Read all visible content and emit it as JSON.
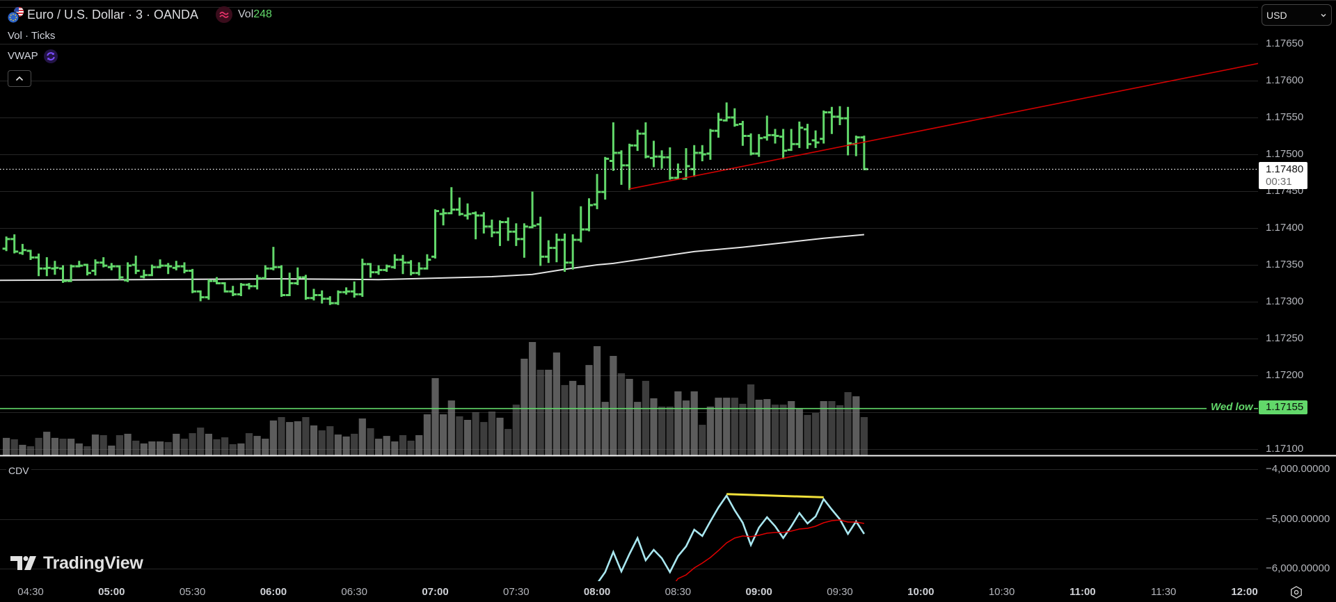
{
  "header": {
    "symbol_title": "Euro / U.S. Dollar · 3 · OANDA",
    "symbol_icon": "eur-usd-flags-icon",
    "indicator_icon": "wave-approx-icon",
    "vol_label": "Vol",
    "vol_value": "248"
  },
  "legend": {
    "volume_label": "Vol · Ticks",
    "vwap_label": "VWAP",
    "vwap_icon": "refresh-icon",
    "collapse_icon": "chevron-up-icon"
  },
  "price_axis": {
    "currency": "USD",
    "currency_icon": "chevron-down-icon",
    "ticks": [
      "1.17650",
      "1.17600",
      "1.17550",
      "1.17500",
      "1.17450",
      "1.17400",
      "1.17350",
      "1.17300",
      "1.17250",
      "1.17200",
      "1.17100"
    ],
    "current_price": "1.17480",
    "countdown": "00:31",
    "wed_low_label": "Wed low",
    "wed_low_value": "1.17155"
  },
  "cdv_pane": {
    "label": "CDV",
    "ticks": [
      "−4,000.00000",
      "−5,000.00000",
      "−6,000.00000"
    ]
  },
  "time_axis": {
    "labels": [
      "04:30",
      "05:00",
      "05:30",
      "06:00",
      "06:30",
      "07:00",
      "07:30",
      "08:00",
      "08:30",
      "09:00",
      "09:30",
      "10:00",
      "10:30",
      "11:00",
      "11:30",
      "12:00"
    ],
    "settings_icon": "gear-icon"
  },
  "watermark": "TradingView",
  "colors": {
    "bar": "#62d86a",
    "volume_up": "rgba(128,128,128,0.72)",
    "volume_down": "rgba(128,128,128,0.48)",
    "vwap": "#e4e4e4",
    "trendline": "#d40000",
    "last_price_line": "#ffffff",
    "wed_low": "#62d86a",
    "cdv_line": "#a9e7f0",
    "cdv_ma": "#e00000",
    "divergence_line": "#f2e13a",
    "grid": "#262626",
    "separator": "#f0f0f0",
    "indicator_red": "#e8336b",
    "vwap_icon": "#7c4dff"
  },
  "chart_data": [
    {
      "type": "bar",
      "style": "ohlc",
      "title": "Euro / U.S. Dollar · 3 · OANDA",
      "interval_minutes": 3,
      "x_start": "04:21",
      "x_step_minutes": 3,
      "ohlc_order": [
        "open",
        "high",
        "low",
        "close"
      ],
      "ohlc": [
        [
          1.17372,
          1.17387,
          1.1737,
          1.17385
        ],
        [
          1.17385,
          1.1739,
          1.17367,
          1.17368
        ],
        [
          1.17366,
          1.17377,
          1.17365,
          1.1737
        ],
        [
          1.17369,
          1.17369,
          1.17358,
          1.1736
        ],
        [
          1.1736,
          1.17364,
          1.17336,
          1.17345
        ],
        [
          1.17345,
          1.17359,
          1.17336,
          1.17346
        ],
        [
          1.17345,
          1.17354,
          1.17338,
          1.17346
        ],
        [
          1.17345,
          1.17348,
          1.17327,
          1.17328
        ],
        [
          1.17328,
          1.17349,
          1.17328,
          1.17348
        ],
        [
          1.17348,
          1.17354,
          1.17348,
          1.17349
        ],
        [
          1.1735,
          1.1735,
          1.17337,
          1.17339
        ],
        [
          1.17342,
          1.17356,
          1.17337,
          1.17353
        ],
        [
          1.17353,
          1.17359,
          1.17348,
          1.17349
        ],
        [
          1.17347,
          1.17351,
          1.17344,
          1.17348
        ],
        [
          1.17348,
          1.17348,
          1.17331,
          1.17333
        ],
        [
          1.17329,
          1.17352,
          1.17328,
          1.17349
        ],
        [
          1.1735,
          1.17361,
          1.17339,
          1.17342
        ],
        [
          1.17334,
          1.17342,
          1.17333,
          1.17336
        ],
        [
          1.17336,
          1.17349,
          1.17336,
          1.17347
        ],
        [
          1.17347,
          1.17356,
          1.17347,
          1.17349
        ],
        [
          1.17349,
          1.17351,
          1.17339,
          1.17348
        ],
        [
          1.17346,
          1.17354,
          1.17344,
          1.17348
        ],
        [
          1.17348,
          1.17352,
          1.1734,
          1.17342
        ],
        [
          1.17342,
          1.17343,
          1.17313,
          1.17314
        ],
        [
          1.17314,
          1.17314,
          1.17302,
          1.17306
        ],
        [
          1.17306,
          1.17329,
          1.17304,
          1.17328
        ],
        [
          1.17328,
          1.17332,
          1.17325,
          1.17325
        ],
        [
          1.17325,
          1.17325,
          1.17314,
          1.17314
        ],
        [
          1.17314,
          1.1732,
          1.17309,
          1.1731
        ],
        [
          1.1731,
          1.17324,
          1.17309,
          1.17323
        ],
        [
          1.17323,
          1.17324,
          1.17318,
          1.17321
        ],
        [
          1.17321,
          1.17335,
          1.17318,
          1.17332
        ],
        [
          1.17332,
          1.17348,
          1.17332,
          1.17345
        ],
        [
          1.17345,
          1.17373,
          1.17344,
          1.17347
        ],
        [
          1.17347,
          1.17348,
          1.17308,
          1.17309
        ],
        [
          1.17309,
          1.17338,
          1.17309,
          1.17325
        ],
        [
          1.17325,
          1.17345,
          1.17324,
          1.17333
        ],
        [
          1.17333,
          1.17335,
          1.17304,
          1.17305
        ],
        [
          1.17305,
          1.17316,
          1.17303,
          1.17309
        ],
        [
          1.17309,
          1.17314,
          1.17299,
          1.17304
        ],
        [
          1.17304,
          1.17306,
          1.17297,
          1.17298
        ],
        [
          1.17298,
          1.17314,
          1.17297,
          1.17313
        ],
        [
          1.17313,
          1.17318,
          1.17311,
          1.17314
        ],
        [
          1.17314,
          1.17326,
          1.17307,
          1.1731
        ],
        [
          1.1731,
          1.17357,
          1.17308,
          1.17351
        ],
        [
          1.17351,
          1.17351,
          1.17334,
          1.1734
        ],
        [
          1.1734,
          1.17348,
          1.17338,
          1.17343
        ],
        [
          1.17343,
          1.17349,
          1.17342,
          1.17348
        ],
        [
          1.17347,
          1.17363,
          1.17346,
          1.17357
        ],
        [
          1.17357,
          1.17362,
          1.17339,
          1.17353
        ],
        [
          1.17353,
          1.17355,
          1.17337,
          1.17339
        ],
        [
          1.17339,
          1.17352,
          1.17337,
          1.17345
        ],
        [
          1.17345,
          1.17363,
          1.17345,
          1.17357
        ],
        [
          1.17361,
          1.17424,
          1.1736,
          1.17423
        ],
        [
          1.17419,
          1.17425,
          1.17405,
          1.1742
        ],
        [
          1.1742,
          1.17454,
          1.1742,
          1.17425
        ],
        [
          1.17425,
          1.1744,
          1.17418,
          1.17419
        ],
        [
          1.17417,
          1.17432,
          1.17413,
          1.17419
        ],
        [
          1.1742,
          1.17421,
          1.17386,
          1.17417
        ],
        [
          1.17417,
          1.1742,
          1.17394,
          1.17402
        ],
        [
          1.17402,
          1.1741,
          1.17389,
          1.17394
        ],
        [
          1.17394,
          1.17409,
          1.17377,
          1.17408
        ],
        [
          1.17408,
          1.17413,
          1.17384,
          1.17395
        ],
        [
          1.17395,
          1.17405,
          1.17377,
          1.17385
        ],
        [
          1.17385,
          1.17405,
          1.17361,
          1.17402
        ],
        [
          1.17401,
          1.17448,
          1.17401,
          1.17403
        ],
        [
          1.17405,
          1.17414,
          1.1735,
          1.17361
        ],
        [
          1.17361,
          1.17382,
          1.17354,
          1.17373
        ],
        [
          1.17373,
          1.17391,
          1.17355,
          1.17384
        ],
        [
          1.17384,
          1.17391,
          1.17342,
          1.17353
        ],
        [
          1.17353,
          1.1739,
          1.17345,
          1.17384
        ],
        [
          1.17384,
          1.17428,
          1.17382,
          1.17398
        ],
        [
          1.17398,
          1.17439,
          1.17397,
          1.17431
        ],
        [
          1.17432,
          1.17472,
          1.17427,
          1.17449
        ],
        [
          1.17449,
          1.17495,
          1.1744,
          1.17494
        ],
        [
          1.17491,
          1.17542,
          1.17479,
          1.17502
        ],
        [
          1.17502,
          1.17504,
          1.1746,
          1.17485
        ],
        [
          1.17485,
          1.17513,
          1.17453,
          1.17512
        ],
        [
          1.17512,
          1.17532,
          1.17506,
          1.17528
        ],
        [
          1.17528,
          1.17542,
          1.17496,
          1.17497
        ],
        [
          1.17495,
          1.17517,
          1.17484,
          1.17497
        ],
        [
          1.17497,
          1.17504,
          1.17482,
          1.17496
        ],
        [
          1.17496,
          1.17508,
          1.17467,
          1.17468
        ],
        [
          1.17468,
          1.17486,
          1.17468,
          1.17476
        ],
        [
          1.17467,
          1.17507,
          1.17467,
          1.17484
        ],
        [
          1.1748,
          1.17511,
          1.17471,
          1.17502
        ],
        [
          1.17502,
          1.17511,
          1.17492,
          1.175
        ],
        [
          1.17501,
          1.17533,
          1.17494,
          1.17532
        ],
        [
          1.17532,
          1.17555,
          1.17524,
          1.17547
        ],
        [
          1.17546,
          1.17569,
          1.17546,
          1.1755
        ],
        [
          1.1755,
          1.17561,
          1.17539,
          1.1754
        ],
        [
          1.17541,
          1.17544,
          1.17513,
          1.17525
        ],
        [
          1.17525,
          1.17527,
          1.175,
          1.17501
        ],
        [
          1.17501,
          1.17526,
          1.17498,
          1.17522
        ],
        [
          1.17523,
          1.17551,
          1.1752,
          1.17526
        ],
        [
          1.17526,
          1.17533,
          1.17516,
          1.17525
        ],
        [
          1.17524,
          1.17533,
          1.17495,
          1.17505
        ],
        [
          1.17506,
          1.17533,
          1.17506,
          1.17514
        ],
        [
          1.17514,
          1.17543,
          1.1751,
          1.17536
        ],
        [
          1.17534,
          1.1754,
          1.17509,
          1.17514
        ],
        [
          1.17519,
          1.17531,
          1.1751,
          1.17516
        ],
        [
          1.17521,
          1.17558,
          1.17516,
          1.17557
        ],
        [
          1.17557,
          1.17563,
          1.17529,
          1.17551
        ],
        [
          1.17551,
          1.17564,
          1.17541,
          1.17549
        ],
        [
          1.17549,
          1.17563,
          1.175,
          1.17515
        ],
        [
          1.17514,
          1.17524,
          1.17499,
          1.17523
        ],
        [
          1.17523,
          1.17524,
          1.1748,
          1.1748
        ]
      ],
      "ylabel": "USD",
      "ylim": [
        1.17092,
        1.17709
      ],
      "yticks": [
        "1.17650",
        "1.17600",
        "1.17550",
        "1.17500",
        "1.17450",
        "1.17400",
        "1.17350",
        "1.17300",
        "1.17250",
        "1.17200",
        "1.17150",
        "1.17100"
      ],
      "grid_levels": [
        1.177,
        1.1765,
        1.176,
        1.1755,
        1.175,
        1.1745,
        1.174,
        1.1735,
        1.173,
        1.1725,
        1.172,
        1.1715,
        1.171
      ],
      "grid": true,
      "overlays": {
        "vwap": {
          "name": "VWAP",
          "points": [
            [
              -1,
              1.17329
            ],
            [
              16,
              1.1733
            ],
            [
              34,
              1.17331
            ],
            [
              46,
              1.1733
            ],
            [
              53,
              1.17332
            ],
            [
              60,
              1.17334
            ],
            [
              65,
              1.17337
            ],
            [
              69,
              1.17344
            ],
            [
              73,
              1.1735
            ],
            [
              75,
              1.17352
            ],
            [
              80,
              1.1736
            ],
            [
              85,
              1.17368
            ],
            [
              91,
              1.17374
            ],
            [
              96,
              1.1738
            ],
            [
              101,
              1.17386
            ],
            [
              106,
              1.17391
            ]
          ]
        },
        "trendline": {
          "start": [
            77,
            1.17453
          ],
          "end": [
            155,
            1.17624
          ],
          "extend_right": true
        },
        "hlines": [
          {
            "label": "Wed low",
            "price": 1.17155
          }
        ],
        "last_price": 1.1748,
        "countdown": "00:31"
      },
      "xticks": [
        "04:30",
        "05:00",
        "05:30",
        "06:00",
        "06:30",
        "07:00",
        "07:30",
        "08:00",
        "08:30",
        "09:00",
        "09:30",
        "10:00",
        "10:30",
        "11:00",
        "11:30",
        "12:00"
      ]
    },
    {
      "type": "bar",
      "title": "Vol · Ticks",
      "x_start": "04:21",
      "x_step_minutes": 3,
      "values": [
        113,
        104,
        68,
        59,
        113,
        153,
        113,
        108,
        108,
        77,
        59,
        135,
        131,
        63,
        131,
        140,
        95,
        77,
        90,
        90,
        86,
        140,
        108,
        144,
        180,
        140,
        104,
        117,
        72,
        77,
        144,
        126,
        108,
        226,
        248,
        216,
        221,
        248,
        194,
        162,
        189,
        135,
        122,
        140,
        239,
        176,
        108,
        126,
        90,
        131,
        95,
        131,
        266,
        501,
        266,
        356,
        253,
        230,
        280,
        216,
        284,
        244,
        171,
        329,
        627,
        735,
        555,
        555,
        667,
        456,
        483,
        456,
        586,
        708,
        347,
        645,
        532,
        496,
        347,
        483,
        370,
        316,
        316,
        415,
        356,
        415,
        198,
        316,
        374,
        374,
        374,
        334,
        460,
        361,
        365,
        329,
        329,
        352,
        302,
        262,
        275,
        352,
        352,
        325,
        410,
        383,
        248
      ],
      "last_value": 248
    },
    {
      "type": "line",
      "title": "CDV",
      "x_start": "04:21",
      "x_step_minutes": 3,
      "series": [
        {
          "name": "CDV",
          "start_index": 73,
          "values": [
            -6300,
            -6070,
            -5664,
            -6056,
            -5706,
            -5385,
            -5832,
            -5622,
            -5790,
            -6070,
            -5748,
            -5552,
            -5217,
            -5343,
            -5049,
            -4769,
            -4531,
            -4825,
            -5077,
            -5524,
            -5175,
            -4965,
            -5147,
            -5385,
            -5147,
            -4881,
            -5091,
            -4951,
            -4601,
            -4811,
            -5007,
            -5301,
            -5049,
            -5301
          ]
        },
        {
          "name": "CDV MA",
          "start_index": 82,
          "values": [
            -6420,
            -6200,
            -6126,
            -5986,
            -5888,
            -5776,
            -5636,
            -5483,
            -5385,
            -5343,
            -5357,
            -5329,
            -5287,
            -5273,
            -5273,
            -5245,
            -5203,
            -5189,
            -5147,
            -5077,
            -5035,
            -5021,
            -5063,
            -5063,
            -5091
          ]
        }
      ],
      "annotations": [
        {
          "type": "line",
          "start": [
            89,
            -4500
          ],
          "end": [
            101,
            -4565
          ]
        }
      ],
      "ylim": [
        -6252,
        -3734
      ],
      "yticks": [
        -4000,
        -5000,
        -6000
      ]
    }
  ]
}
